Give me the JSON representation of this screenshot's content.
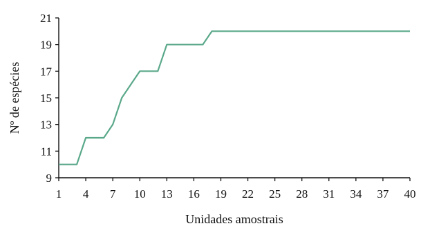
{
  "chart_data": {
    "type": "line",
    "xlabel": "Unidades amostrais",
    "ylabel": "Nº de espécies",
    "xlim": [
      1,
      40
    ],
    "ylim": [
      9,
      21
    ],
    "x_ticks": [
      1,
      4,
      7,
      10,
      13,
      16,
      19,
      22,
      25,
      28,
      31,
      34,
      37,
      40
    ],
    "y_ticks": [
      9,
      11,
      13,
      15,
      17,
      19,
      21
    ],
    "grid": false,
    "line_color": "#5aa88a",
    "series": [
      {
        "x": [
          1,
          2,
          3,
          4,
          5,
          6,
          7,
          8,
          9,
          10,
          11,
          12,
          13,
          14,
          15,
          16,
          17,
          18,
          19,
          20,
          21,
          22,
          23,
          24,
          25,
          26,
          27,
          28,
          29,
          30,
          31,
          32,
          33,
          34,
          35,
          36,
          37,
          38,
          39,
          40
        ],
        "values": [
          10,
          10,
          10,
          12,
          12,
          12,
          13,
          15,
          16,
          17,
          17,
          17,
          19,
          19,
          19,
          19,
          19,
          20,
          20,
          20,
          20,
          20,
          20,
          20,
          20,
          20,
          20,
          20,
          20,
          20,
          20,
          20,
          20,
          20,
          20,
          20,
          20,
          20,
          20,
          20
        ]
      }
    ]
  }
}
